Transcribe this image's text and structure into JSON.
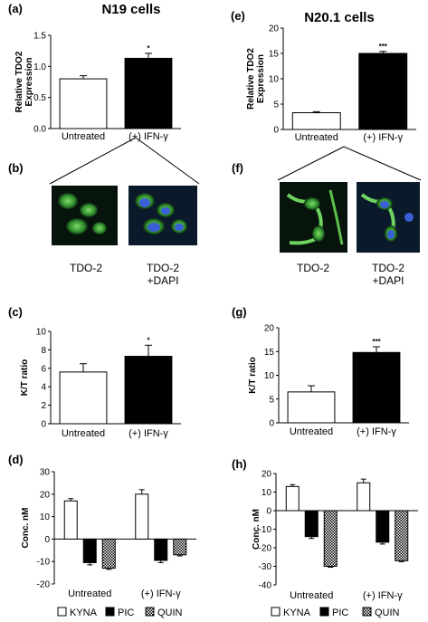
{
  "columns": {
    "left_title": "N19 cells",
    "right_title": "N20.1 cells"
  },
  "image_panels": [
    {
      "letter": "(b)",
      "captions": [
        {
          "line1": "TDO-2",
          "line2": ""
        },
        {
          "line1": "TDO-2",
          "line2": "+DAPI"
        }
      ]
    },
    {
      "letter": "(f)",
      "captions": [
        {
          "line1": "TDO-2",
          "line2": ""
        },
        {
          "line1": "TDO-2",
          "line2": "+DAPI"
        }
      ]
    }
  ],
  "legend": {
    "items": [
      {
        "label": "KYNA",
        "style": "white"
      },
      {
        "label": "PIC",
        "style": "black"
      },
      {
        "label": "QUIN",
        "style": "hatched"
      }
    ]
  },
  "chart_data": [
    {
      "id": "a",
      "letter": "(a)",
      "type": "bar",
      "title": "",
      "ylabel": [
        "Relative TDO2",
        "Expression"
      ],
      "ylim": [
        0,
        1.5
      ],
      "yticks": [
        "0.0",
        "0.5",
        "1.0",
        "1.5"
      ],
      "categories": [
        "Untreated",
        "(+) IFN-γ"
      ],
      "values": [
        0.8,
        1.13
      ],
      "errors": [
        0.05,
        0.08
      ],
      "fills": [
        "#ffffff",
        "#000000"
      ],
      "significance": [
        "",
        "*"
      ]
    },
    {
      "id": "e",
      "letter": "(e)",
      "type": "bar",
      "title": "",
      "ylabel": [
        "Relative TDO2",
        "Expression"
      ],
      "ylim": [
        0,
        20
      ],
      "yticks": [
        "0",
        "5",
        "10",
        "15",
        "20"
      ],
      "categories": [
        "Untreated",
        "(+) IFN-γ"
      ],
      "values": [
        3.3,
        15.0
      ],
      "errors": [
        0.2,
        0.4
      ],
      "fills": [
        "#ffffff",
        "#000000"
      ],
      "significance": [
        "",
        "***"
      ]
    },
    {
      "id": "c",
      "letter": "(c)",
      "type": "bar",
      "title": "",
      "ylabel": [
        "K/T ratio"
      ],
      "ylim": [
        0,
        10
      ],
      "yticks": [
        "0",
        "2",
        "4",
        "6",
        "8",
        "10"
      ],
      "categories": [
        "Untreated",
        "(+) IFN-γ"
      ],
      "values": [
        5.6,
        7.3
      ],
      "errors": [
        0.9,
        1.2
      ],
      "fills": [
        "#ffffff",
        "#000000"
      ],
      "significance": [
        "",
        "*"
      ]
    },
    {
      "id": "g",
      "letter": "(g)",
      "type": "bar",
      "title": "",
      "ylabel": [
        "K/T ratio"
      ],
      "ylim": [
        0,
        20
      ],
      "yticks": [
        "0",
        "5",
        "10",
        "15",
        "20"
      ],
      "categories": [
        "Untreated",
        "(+) IFN-γ"
      ],
      "values": [
        6.5,
        14.8
      ],
      "errors": [
        1.3,
        1.2
      ],
      "fills": [
        "#ffffff",
        "#000000"
      ],
      "significance": [
        "",
        "***"
      ]
    },
    {
      "id": "d",
      "letter": "(d)",
      "type": "bar",
      "title": "",
      "ylabel": [
        "Conc. nM"
      ],
      "ylim": [
        -20,
        30
      ],
      "yticks": [
        "-20",
        "-10",
        "0",
        "10",
        "20",
        "30"
      ],
      "categories": [
        "Untreated",
        "(+) IFN-γ"
      ],
      "series": [
        {
          "name": "KYNA",
          "values": [
            17,
            20
          ],
          "errors": [
            1.0,
            2.0
          ]
        },
        {
          "name": "PIC",
          "values": [
            -10.5,
            -9.5
          ],
          "errors": [
            1.0,
            1.0
          ]
        },
        {
          "name": "QUIN",
          "values": [
            -13,
            -7
          ],
          "errors": [
            0.5,
            0.5
          ]
        }
      ]
    },
    {
      "id": "h",
      "letter": "(h)",
      "type": "bar",
      "title": "",
      "ylabel": [
        "Conc. nM"
      ],
      "ylim": [
        -40,
        20
      ],
      "yticks": [
        "-40",
        "-30",
        "-20",
        "-10",
        "0",
        "10",
        "20"
      ],
      "categories": [
        "Untreated",
        "(+) IFN-γ"
      ],
      "series": [
        {
          "name": "KYNA",
          "values": [
            13,
            15
          ],
          "errors": [
            1.0,
            2.0
          ]
        },
        {
          "name": "PIC",
          "values": [
            -14,
            -17
          ],
          "errors": [
            1.0,
            1.0
          ]
        },
        {
          "name": "QUIN",
          "values": [
            -30,
            -27
          ],
          "errors": [
            0.5,
            0.5
          ]
        }
      ]
    }
  ]
}
